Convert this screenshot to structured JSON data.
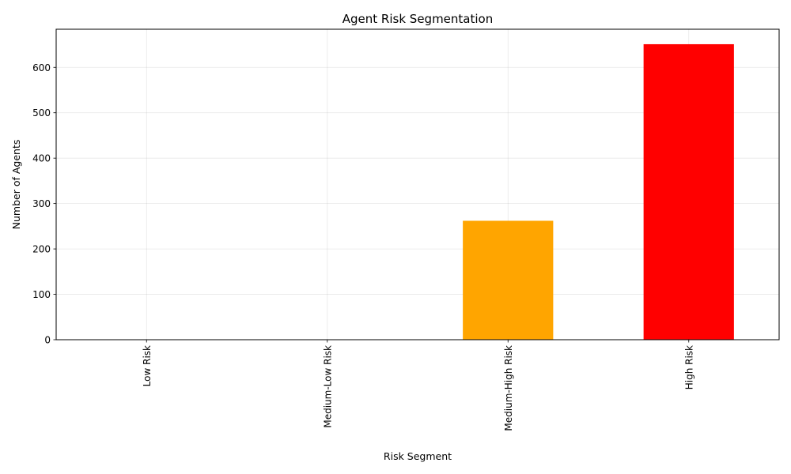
{
  "chart_data": {
    "type": "bar",
    "title": "Agent Risk Segmentation",
    "xlabel": "Risk Segment",
    "ylabel": "Number of Agents",
    "categories": [
      "Low Risk",
      "Medium-Low Risk",
      "Medium-High Risk",
      "High Risk"
    ],
    "values": [
      0,
      0,
      262,
      651
    ],
    "colors": [
      "#008000",
      "#ffff00",
      "#ffa500",
      "#ff0000"
    ],
    "ylim": [
      0,
      684
    ],
    "yticks": [
      "0",
      "100",
      "200",
      "300",
      "400",
      "500",
      "600"
    ],
    "grid": true,
    "legend": "none"
  }
}
